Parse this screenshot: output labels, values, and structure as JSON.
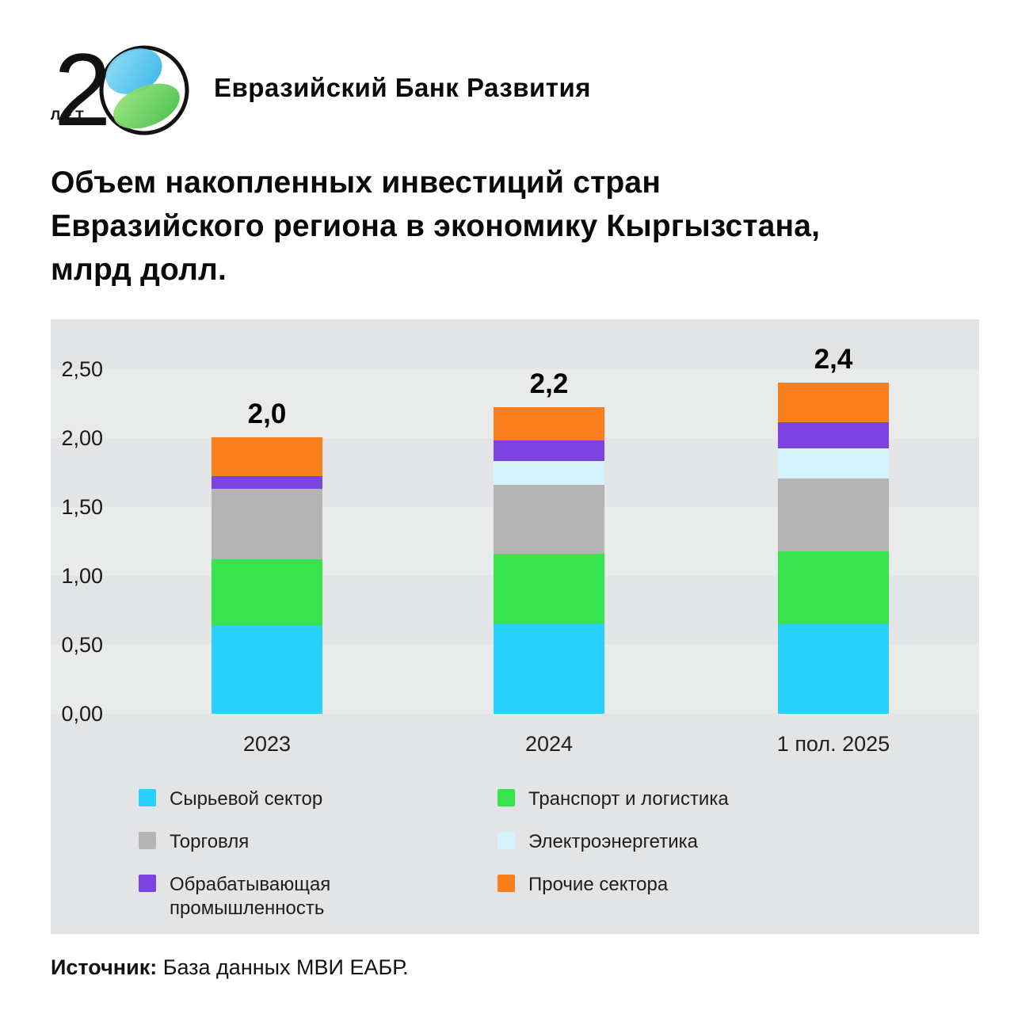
{
  "header": {
    "logo": {
      "years_label": "ЛЕТ",
      "digit": "2"
    },
    "brand": "Евразийский Банк Развития"
  },
  "title": {
    "lines": [
      "Объем накопленных инвестиций стран",
      "Евразийского региона в экономику Кыргызстана,",
      "млрд долл."
    ]
  },
  "chart_data": {
    "type": "bar",
    "stacked": true,
    "title": "Объем накопленных инвестиций стран Евразийского региона в экономику Кыргызстана, млрд долл.",
    "categories": [
      "2023",
      "2024",
      "1 пол. 2025"
    ],
    "series": [
      {
        "name": "Сырьевой сектор",
        "color": "#28d1fb",
        "values": [
          0.64,
          0.65,
          0.65
        ]
      },
      {
        "name": "Транспорт и логистика",
        "color": "#38e350",
        "values": [
          0.48,
          0.51,
          0.53
        ]
      },
      {
        "name": "Торговля",
        "color": "#b4b4b4",
        "values": [
          0.51,
          0.5,
          0.53
        ]
      },
      {
        "name": "Электроэнергетика",
        "color": "#d5f3fc",
        "values": [
          0.0,
          0.17,
          0.22
        ]
      },
      {
        "name": "Обрабатывающая промышленность",
        "color": "#7b44e0",
        "values": [
          0.09,
          0.15,
          0.19
        ]
      },
      {
        "name": "Прочие сектора",
        "color": "#f87f1b",
        "values": [
          0.28,
          0.24,
          0.29
        ]
      }
    ],
    "totals": [
      2.0,
      2.2,
      2.4
    ],
    "totals_labels": [
      "2,0",
      "2,2",
      "2,4"
    ],
    "y_ticks": [
      "2,50",
      "2,00",
      "1,50",
      "1,00",
      "0,50",
      "0,00"
    ],
    "y_tick_values": [
      2.5,
      2.0,
      1.5,
      1.0,
      0.5,
      0.0
    ],
    "ylim": [
      0,
      2.5
    ],
    "xlabel": "",
    "ylabel": "млрд долл.",
    "grid": "horizontal-bands",
    "legend_position": "bottom"
  },
  "source": {
    "label": "Источник:",
    "text": "База данных МВИ ЕАБР."
  }
}
